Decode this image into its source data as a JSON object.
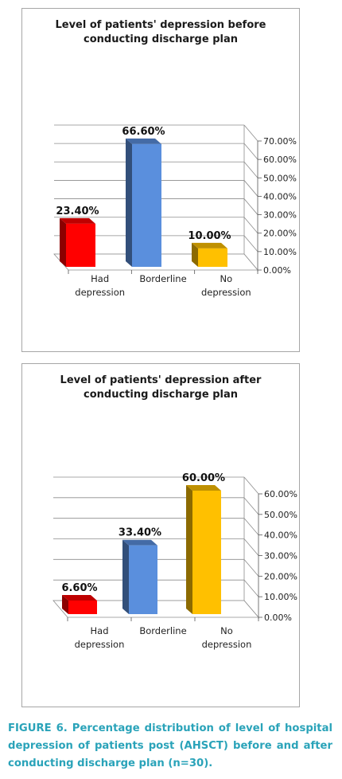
{
  "chart_data": [
    {
      "type": "bar",
      "title": "Level of patients' depression before conducting discharge plan",
      "categories": [
        "Had depression",
        "Borderline",
        "No depression"
      ],
      "category_lines": [
        [
          "Had",
          "depression"
        ],
        [
          "Borderline"
        ],
        [
          "No",
          "depression"
        ]
      ],
      "values": [
        23.4,
        66.6,
        10.0
      ],
      "value_labels": [
        "23.40%",
        "66.60%",
        "10.00%"
      ],
      "colors": [
        "#ff0000",
        "#5a8fdd",
        "#ffc000"
      ],
      "yticks": [
        "0.00%",
        "10.00%",
        "20.00%",
        "30.00%",
        "40.00%",
        "50.00%",
        "60.00%",
        "70.00%"
      ],
      "ylim": [
        0,
        70
      ],
      "grid": true,
      "legend": "none",
      "xlabel": "",
      "ylabel": ""
    },
    {
      "type": "bar",
      "title": "Level of patients' depression after conducting discharge plan",
      "categories": [
        "Had depression",
        "Borderline",
        "No depression"
      ],
      "category_lines": [
        [
          "Had",
          "depression"
        ],
        [
          "Borderline"
        ],
        [
          "No",
          "depression"
        ]
      ],
      "values": [
        6.6,
        33.4,
        60.0
      ],
      "value_labels": [
        "6.60%",
        "33.40%",
        "60.00%"
      ],
      "colors": [
        "#ff0000",
        "#5a8fdd",
        "#ffc000"
      ],
      "yticks": [
        "0.00%",
        "10.00%",
        "20.00%",
        "30.00%",
        "40.00%",
        "50.00%",
        "60.00%"
      ],
      "ylim": [
        0,
        60
      ],
      "grid": true,
      "legend": "none",
      "xlabel": "",
      "ylabel": ""
    }
  ],
  "caption": "FIGURE 6. Percentage distribution of level of hospital depression of patients post (AHSCT) before and after conducting discharge plan (n=30)."
}
